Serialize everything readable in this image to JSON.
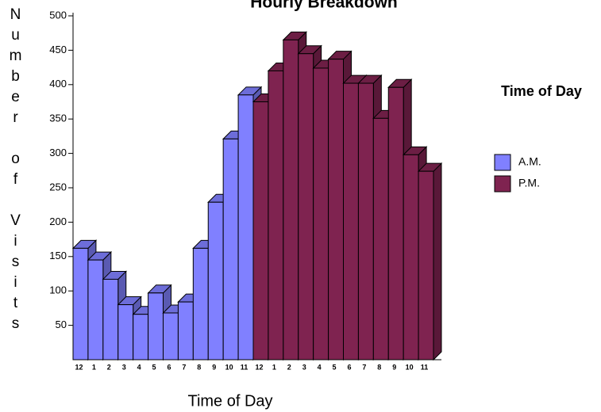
{
  "chart_data": {
    "type": "bar3d",
    "title": "Hourly Breakdown",
    "x_label": "Time of Day",
    "y_label": "Number of Visits",
    "legend_title": "Time of Day",
    "categories": [
      "12",
      "1",
      "2",
      "3",
      "4",
      "5",
      "6",
      "7",
      "8",
      "9",
      "10",
      "11",
      "12",
      "1",
      "2",
      "3",
      "4",
      "5",
      "6",
      "7",
      "8",
      "9",
      "10",
      "11"
    ],
    "series": [
      {
        "name": "A.M.",
        "color": "#8080ff",
        "values": [
          162,
          145,
          117,
          80,
          66,
          97,
          68,
          84,
          162,
          229,
          321,
          385,
          null,
          null,
          null,
          null,
          null,
          null,
          null,
          null,
          null,
          null,
          null,
          null
        ]
      },
      {
        "name": "P.M.",
        "color": "#7f2350",
        "values": [
          null,
          null,
          null,
          null,
          null,
          null,
          null,
          null,
          null,
          null,
          null,
          null,
          375,
          420,
          465,
          445,
          424,
          437,
          402,
          402,
          351,
          396,
          298,
          274
        ]
      }
    ],
    "ylim": [
      0,
      500
    ],
    "yticks": [
      50,
      100,
      150,
      200,
      250,
      300,
      350,
      400,
      450,
      500
    ]
  }
}
